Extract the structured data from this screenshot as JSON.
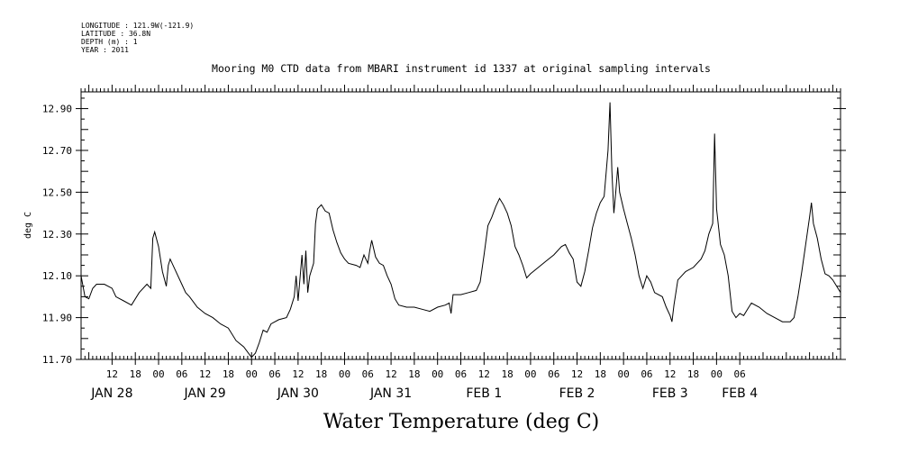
{
  "meta": {
    "longitude": "LONGITUDE : 121.9W(-121.9)",
    "latitude": "LATITUDE : 36.8N",
    "depth": "DEPTH (m) : 1",
    "year": "YEAR : 2011"
  },
  "colors": {
    "line": "#000000",
    "background": "#ffffff"
  },
  "chart_data": {
    "type": "line",
    "title": "Mooring M0 CTD data from MBARI instrument id 1337 at original sampling intervals",
    "xlabel": "Water Temperature (deg C)",
    "ylabel": "deg C",
    "ylim": [
      11.7,
      12.98
    ],
    "y_ticks": [
      "11.70",
      "11.90",
      "12.10",
      "12.30",
      "12.50",
      "12.70",
      "12.90"
    ],
    "y_tick_values": [
      11.7,
      11.9,
      12.1,
      12.3,
      12.5,
      12.7,
      12.9
    ],
    "xlim": [
      "2011-01-27T04:00",
      "2011-02-04T08:00"
    ],
    "x_hour_ticks": [
      {
        "t": "2011-01-27T12:00",
        "label": "12"
      },
      {
        "t": "2011-01-27T18:00",
        "label": "18"
      },
      {
        "t": "2011-01-28T00:00",
        "label": "00"
      },
      {
        "t": "2011-01-28T06:00",
        "label": "06"
      },
      {
        "t": "2011-01-28T12:00",
        "label": "12"
      },
      {
        "t": "2011-01-28T18:00",
        "label": "18"
      },
      {
        "t": "2011-01-29T00:00",
        "label": "00"
      },
      {
        "t": "2011-01-29T06:00",
        "label": "06"
      },
      {
        "t": "2011-01-29T12:00",
        "label": "12"
      },
      {
        "t": "2011-01-29T18:00",
        "label": "18"
      },
      {
        "t": "2011-01-30T00:00",
        "label": "00"
      },
      {
        "t": "2011-01-30T06:00",
        "label": "06"
      },
      {
        "t": "2011-01-30T12:00",
        "label": "12"
      },
      {
        "t": "2011-01-30T18:00",
        "label": "18"
      },
      {
        "t": "2011-01-31T00:00",
        "label": "00"
      },
      {
        "t": "2011-01-31T06:00",
        "label": "06"
      },
      {
        "t": "2011-01-31T12:00",
        "label": "12"
      },
      {
        "t": "2011-01-31T18:00",
        "label": "18"
      },
      {
        "t": "2011-02-01T00:00",
        "label": "00"
      },
      {
        "t": "2011-02-01T06:00",
        "label": "06"
      },
      {
        "t": "2011-02-01T12:00",
        "label": "12"
      },
      {
        "t": "2011-02-01T18:00",
        "label": "18"
      },
      {
        "t": "2011-02-02T00:00",
        "label": "00"
      },
      {
        "t": "2011-02-02T06:00",
        "label": "06"
      },
      {
        "t": "2011-02-02T12:00",
        "label": "12"
      },
      {
        "t": "2011-02-02T18:00",
        "label": "18"
      },
      {
        "t": "2011-02-03T00:00",
        "label": "00"
      },
      {
        "t": "2011-02-03T06:00",
        "label": "06"
      }
    ],
    "x_day_labels": [
      {
        "t": "2011-01-27T12:00",
        "label": "JAN 28"
      },
      {
        "t": "2011-01-28T12:00",
        "label": "JAN 29"
      },
      {
        "t": "2011-01-29T12:00",
        "label": "JAN 30"
      },
      {
        "t": "2011-01-30T12:00",
        "label": "JAN 31"
      },
      {
        "t": "2011-01-31T12:00",
        "label": "FEB  1"
      },
      {
        "t": "2011-02-01T12:00",
        "label": "FEB  2"
      },
      {
        "t": "2011-02-02T12:00",
        "label": "FEB  3"
      },
      {
        "t": "2011-02-03T06:00",
        "label": "FEB  4"
      }
    ],
    "series": [
      {
        "points": [
          [
            "2011-01-27T04:00",
            12.1
          ],
          [
            "2011-01-27T05:00",
            12.0
          ],
          [
            "2011-01-27T06:00",
            11.99
          ],
          [
            "2011-01-27T07:00",
            12.04
          ],
          [
            "2011-01-27T08:00",
            12.06
          ],
          [
            "2011-01-27T10:00",
            12.06
          ],
          [
            "2011-01-27T12:00",
            12.04
          ],
          [
            "2011-01-27T13:00",
            12.0
          ],
          [
            "2011-01-27T15:00",
            11.98
          ],
          [
            "2011-01-27T17:00",
            11.96
          ],
          [
            "2011-01-27T19:00",
            12.02
          ],
          [
            "2011-01-27T21:00",
            12.06
          ],
          [
            "2011-01-27T22:00",
            12.04
          ],
          [
            "2011-01-27T22:30",
            12.28
          ],
          [
            "2011-01-27T23:00",
            12.31
          ],
          [
            "2011-01-28T00:00",
            12.24
          ],
          [
            "2011-01-28T01:00",
            12.12
          ],
          [
            "2011-01-28T02:00",
            12.05
          ],
          [
            "2011-01-28T02:30",
            12.15
          ],
          [
            "2011-01-28T03:00",
            12.18
          ],
          [
            "2011-01-28T04:00",
            12.14
          ],
          [
            "2011-01-28T06:00",
            12.06
          ],
          [
            "2011-01-28T07:00",
            12.02
          ],
          [
            "2011-01-28T08:00",
            12.0
          ],
          [
            "2011-01-28T10:00",
            11.95
          ],
          [
            "2011-01-28T12:00",
            11.92
          ],
          [
            "2011-01-28T14:00",
            11.9
          ],
          [
            "2011-01-28T16:00",
            11.87
          ],
          [
            "2011-01-28T18:00",
            11.85
          ],
          [
            "2011-01-28T20:00",
            11.79
          ],
          [
            "2011-01-28T22:00",
            11.76
          ],
          [
            "2011-01-29T00:00",
            11.71
          ],
          [
            "2011-01-29T01:00",
            11.73
          ],
          [
            "2011-01-29T02:00",
            11.78
          ],
          [
            "2011-01-29T03:00",
            11.84
          ],
          [
            "2011-01-29T04:00",
            11.83
          ],
          [
            "2011-01-29T05:00",
            11.87
          ],
          [
            "2011-01-29T07:00",
            11.89
          ],
          [
            "2011-01-29T09:00",
            11.9
          ],
          [
            "2011-01-29T10:00",
            11.94
          ],
          [
            "2011-01-29T11:00",
            12.0
          ],
          [
            "2011-01-29T11:30",
            12.1
          ],
          [
            "2011-01-29T12:00",
            11.98
          ],
          [
            "2011-01-29T13:00",
            12.2
          ],
          [
            "2011-01-29T13:30",
            12.06
          ],
          [
            "2011-01-29T14:00",
            12.22
          ],
          [
            "2011-01-29T14:30",
            12.02
          ],
          [
            "2011-01-29T15:00",
            12.1
          ],
          [
            "2011-01-29T16:00",
            12.16
          ],
          [
            "2011-01-29T16:30",
            12.35
          ],
          [
            "2011-01-29T17:00",
            12.42
          ],
          [
            "2011-01-29T18:00",
            12.44
          ],
          [
            "2011-01-29T19:00",
            12.41
          ],
          [
            "2011-01-29T20:00",
            12.4
          ],
          [
            "2011-01-29T21:00",
            12.32
          ],
          [
            "2011-01-29T22:00",
            12.26
          ],
          [
            "2011-01-29T23:00",
            12.21
          ],
          [
            "2011-01-30T00:00",
            12.18
          ],
          [
            "2011-01-30T01:00",
            12.16
          ],
          [
            "2011-01-30T03:00",
            12.15
          ],
          [
            "2011-01-30T04:00",
            12.14
          ],
          [
            "2011-01-30T05:00",
            12.2
          ],
          [
            "2011-01-30T06:00",
            12.16
          ],
          [
            "2011-01-30T06:30",
            12.22
          ],
          [
            "2011-01-30T07:00",
            12.27
          ],
          [
            "2011-01-30T08:00",
            12.19
          ],
          [
            "2011-01-30T09:00",
            12.16
          ],
          [
            "2011-01-30T10:00",
            12.15
          ],
          [
            "2011-01-30T11:00",
            12.1
          ],
          [
            "2011-01-30T12:00",
            12.06
          ],
          [
            "2011-01-30T13:00",
            11.99
          ],
          [
            "2011-01-30T14:00",
            11.96
          ],
          [
            "2011-01-30T16:00",
            11.95
          ],
          [
            "2011-01-30T18:00",
            11.95
          ],
          [
            "2011-01-30T20:00",
            11.94
          ],
          [
            "2011-01-30T22:00",
            11.93
          ],
          [
            "2011-01-31T00:00",
            11.95
          ],
          [
            "2011-01-31T02:00",
            11.96
          ],
          [
            "2011-01-31T03:00",
            11.97
          ],
          [
            "2011-01-31T03:30",
            11.92
          ],
          [
            "2011-01-31T04:00",
            12.01
          ],
          [
            "2011-01-31T06:00",
            12.01
          ],
          [
            "2011-01-31T08:00",
            12.02
          ],
          [
            "2011-01-31T10:00",
            12.03
          ],
          [
            "2011-01-31T11:00",
            12.07
          ],
          [
            "2011-01-31T12:00",
            12.2
          ],
          [
            "2011-01-31T13:00",
            12.34
          ],
          [
            "2011-01-31T14:00",
            12.38
          ],
          [
            "2011-01-31T15:00",
            12.43
          ],
          [
            "2011-01-31T16:00",
            12.47
          ],
          [
            "2011-01-31T17:00",
            12.44
          ],
          [
            "2011-01-31T18:00",
            12.4
          ],
          [
            "2011-01-31T19:00",
            12.34
          ],
          [
            "2011-01-31T20:00",
            12.24
          ],
          [
            "2011-01-31T21:00",
            12.2
          ],
          [
            "2011-01-31T22:00",
            12.15
          ],
          [
            "2011-01-31T23:00",
            12.09
          ],
          [
            "2011-02-01T00:00",
            12.11
          ],
          [
            "2011-02-01T02:00",
            12.14
          ],
          [
            "2011-02-01T04:00",
            12.17
          ],
          [
            "2011-02-01T06:00",
            12.2
          ],
          [
            "2011-02-01T08:00",
            12.24
          ],
          [
            "2011-02-01T09:00",
            12.25
          ],
          [
            "2011-02-01T10:00",
            12.21
          ],
          [
            "2011-02-01T11:00",
            12.18
          ],
          [
            "2011-02-01T12:00",
            12.07
          ],
          [
            "2011-02-01T13:00",
            12.05
          ],
          [
            "2011-02-01T14:00",
            12.12
          ],
          [
            "2011-02-01T15:00",
            12.22
          ],
          [
            "2011-02-01T16:00",
            12.33
          ],
          [
            "2011-02-01T17:00",
            12.4
          ],
          [
            "2011-02-01T18:00",
            12.45
          ],
          [
            "2011-02-01T19:00",
            12.48
          ],
          [
            "2011-02-01T20:00",
            12.7
          ],
          [
            "2011-02-01T20:30",
            12.93
          ],
          [
            "2011-02-01T21:00",
            12.6
          ],
          [
            "2011-02-01T21:30",
            12.4
          ],
          [
            "2011-02-01T22:00",
            12.5
          ],
          [
            "2011-02-01T22:30",
            12.62
          ],
          [
            "2011-02-01T23:00",
            12.5
          ],
          [
            "2011-02-02T00:00",
            12.42
          ],
          [
            "2011-02-02T01:00",
            12.35
          ],
          [
            "2011-02-02T02:00",
            12.28
          ],
          [
            "2011-02-02T03:00",
            12.2
          ],
          [
            "2011-02-02T04:00",
            12.1
          ],
          [
            "2011-02-02T05:00",
            12.04
          ],
          [
            "2011-02-02T06:00",
            12.1
          ],
          [
            "2011-02-02T07:00",
            12.07
          ],
          [
            "2011-02-02T08:00",
            12.02
          ],
          [
            "2011-02-02T10:00",
            12.0
          ],
          [
            "2011-02-02T11:00",
            11.95
          ],
          [
            "2011-02-02T12:00",
            11.91
          ],
          [
            "2011-02-02T12:30",
            11.88
          ],
          [
            "2011-02-02T13:00",
            11.96
          ],
          [
            "2011-02-02T14:00",
            12.08
          ],
          [
            "2011-02-02T16:00",
            12.12
          ],
          [
            "2011-02-02T18:00",
            12.14
          ],
          [
            "2011-02-02T20:00",
            12.18
          ],
          [
            "2011-02-02T21:00",
            12.22
          ],
          [
            "2011-02-02T22:00",
            12.3
          ],
          [
            "2011-02-02T23:00",
            12.35
          ],
          [
            "2011-02-02T23:30",
            12.78
          ],
          [
            "2011-02-03T00:00",
            12.42
          ],
          [
            "2011-02-03T01:00",
            12.25
          ],
          [
            "2011-02-03T02:00",
            12.2
          ],
          [
            "2011-02-03T03:00",
            12.1
          ],
          [
            "2011-02-03T04:00",
            11.93
          ],
          [
            "2011-02-03T05:00",
            11.9
          ],
          [
            "2011-02-03T06:00",
            11.92
          ],
          [
            "2011-02-03T07:00",
            11.91
          ],
          [
            "2011-02-03T08:00",
            11.94
          ],
          [
            "2011-02-03T09:00",
            11.97
          ],
          [
            "2011-02-03T11:00",
            11.95
          ],
          [
            "2011-02-03T13:00",
            11.92
          ],
          [
            "2011-02-03T15:00",
            11.9
          ],
          [
            "2011-02-03T17:00",
            11.88
          ],
          [
            "2011-02-03T19:00",
            11.88
          ],
          [
            "2011-02-03T20:00",
            11.9
          ],
          [
            "2011-02-03T21:00",
            12.0
          ],
          [
            "2011-02-03T22:00",
            12.12
          ],
          [
            "2011-02-03T23:00",
            12.25
          ],
          [
            "2011-02-04T00:00",
            12.38
          ],
          [
            "2011-02-04T00:30",
            12.45
          ],
          [
            "2011-02-04T01:00",
            12.35
          ],
          [
            "2011-02-04T02:00",
            12.28
          ],
          [
            "2011-02-04T03:00",
            12.18
          ],
          [
            "2011-02-04T04:00",
            12.11
          ],
          [
            "2011-02-04T05:00",
            12.1
          ],
          [
            "2011-02-04T06:00",
            12.08
          ],
          [
            "2011-02-04T07:00",
            12.05
          ],
          [
            "2011-02-04T08:00",
            12.02
          ]
        ]
      }
    ]
  }
}
